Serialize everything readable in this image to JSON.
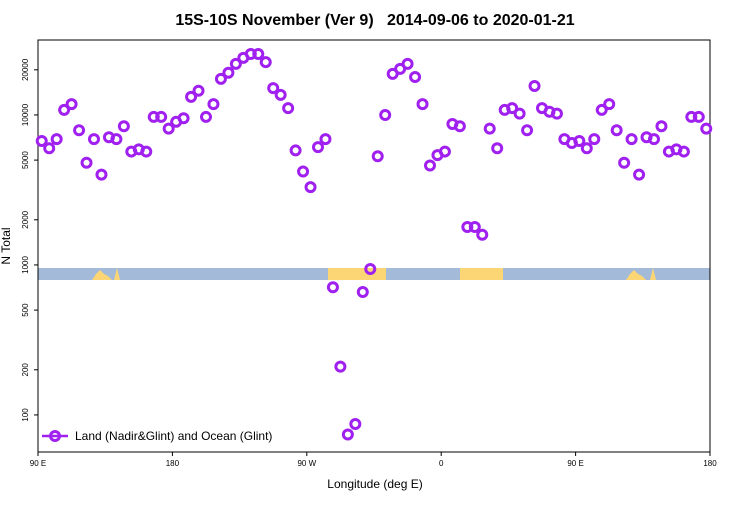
{
  "chart_data": {
    "type": "scatter",
    "title": "15S-10S November (Ver 9)   2014-09-06 to 2020-01-21",
    "x_label": "Longitude (deg E)",
    "y_label": "N Total",
    "log_y": true,
    "legend_position": "bottom-left",
    "xlim": [
      90,
      540
    ],
    "xticks": [
      {
        "value": 90,
        "label": "90 E"
      },
      180,
      {
        "value": 270,
        "label": "90 W"
      },
      {
        "value": 360,
        "label": "0"
      },
      {
        "value": 450,
        "label": "90 E"
      },
      {
        "value": 540,
        "label": "180"
      }
    ],
    "ylim": [
      56.6,
      31600
    ],
    "yticks": [
      100,
      200,
      500,
      1000,
      2000,
      5000,
      10000,
      20000
    ],
    "x": [
      92.5,
      97.5,
      102.5,
      107.5,
      112.5,
      117.5,
      122.5,
      127.5,
      132.5,
      137.5,
      142.5,
      147.5,
      152.5,
      157.5,
      162.5,
      167.5,
      172.5,
      177.5,
      182.5,
      187.5,
      192.5,
      197.5,
      202.5,
      207.5,
      212.5,
      217.5,
      222.5,
      227.5,
      232.5,
      237.5,
      242.5,
      247.5,
      252.5,
      257.5,
      262.5,
      267.5,
      272.5,
      277.5,
      282.5,
      287.5,
      292.5,
      297.5,
      302.5,
      307.5,
      312.5,
      317.5,
      322.5,
      327.5,
      332.5,
      337.5,
      342.5,
      347.5,
      352.5,
      357.5,
      362.5,
      367.5,
      372.5,
      377.5,
      382.5,
      387.5,
      392.5,
      397.5,
      402.5,
      407.5,
      412.5,
      417.5,
      422.5,
      427.5,
      432.5,
      437.5,
      442.5,
      447.5,
      452.5,
      457.5,
      462.5,
      467.5,
      472.5,
      477.5,
      482.5,
      487.5,
      492.5,
      497.5,
      502.5,
      507.5,
      512.5,
      517.5,
      522.5,
      527.5,
      532.5,
      537.5
    ],
    "series": [
      {
        "name": "Land (Nadir&Glint) and Ocean (Glint)",
        "color": "#a020f0",
        "values": [
          6700,
          6000,
          6900,
          10800,
          11800,
          7900,
          4800,
          6900,
          4000,
          7100,
          6900,
          8400,
          5700,
          5900,
          5700,
          9700,
          9700,
          8100,
          9000,
          9500,
          13200,
          14500,
          9700,
          11800,
          17400,
          19100,
          21900,
          24000,
          25500,
          25500,
          22500,
          15100,
          13600,
          11100,
          5800,
          4200,
          3300,
          6100,
          6900,
          710,
          210,
          74,
          87,
          660,
          940,
          5300,
          10000,
          18800,
          20300,
          21900,
          17900,
          11800,
          4600,
          5400,
          5700,
          8700,
          8400,
          1790,
          1790,
          1590,
          8100,
          6000,
          10800,
          11100,
          10200,
          7900,
          15600,
          11100,
          10500,
          10200,
          6900,
          6500,
          6700,
          6000,
          6900,
          10800,
          11800,
          7900,
          4800,
          6900,
          4000,
          7100,
          6900,
          8400,
          5700,
          5900,
          5700,
          9700,
          9700,
          8100
        ]
      }
    ]
  }
}
